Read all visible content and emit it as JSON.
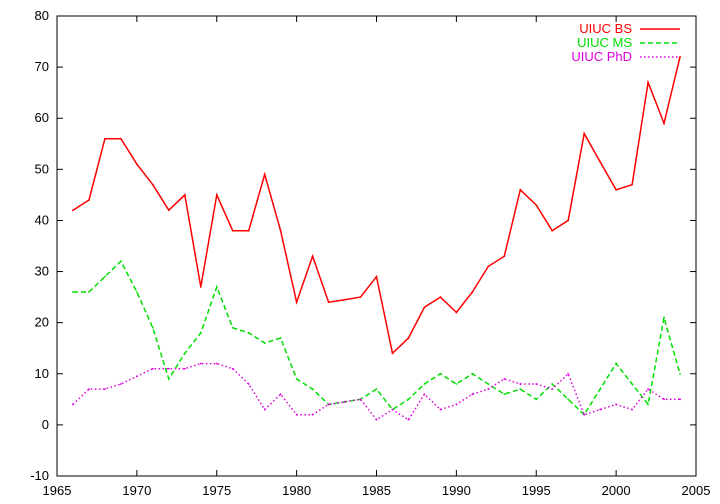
{
  "chart_data": {
    "type": "line",
    "title": "",
    "xlabel": "",
    "ylabel": "",
    "xlim": [
      1965,
      2005
    ],
    "ylim": [
      -10,
      80
    ],
    "xticks": [
      1965,
      1970,
      1975,
      1980,
      1985,
      1990,
      1995,
      2000,
      2005
    ],
    "yticks": [
      -10,
      0,
      10,
      20,
      30,
      40,
      50,
      60,
      70,
      80
    ],
    "grid": false,
    "legend_position": "top-right",
    "series": [
      {
        "name": "UIUC BS",
        "color": "#ff0000",
        "dash": "solid",
        "x": [
          1966,
          1967,
          1968,
          1969,
          1970,
          1971,
          1972,
          1973,
          1974,
          1975,
          1976,
          1977,
          1978,
          1979,
          1980,
          1981,
          1982,
          1983,
          1984,
          1985,
          1986,
          1987,
          1988,
          1989,
          1990,
          1991,
          1992,
          1993,
          1994,
          1995,
          1996,
          1997,
          1998,
          1999,
          2000,
          2001,
          2002,
          2003,
          2004
        ],
        "values": [
          42,
          44,
          56,
          56,
          51,
          47,
          42,
          45,
          27,
          45,
          38,
          38,
          49,
          38,
          24,
          33,
          24,
          24.5,
          25,
          29,
          14,
          17,
          23,
          25,
          22,
          26,
          31,
          33,
          46,
          43,
          38,
          40,
          57,
          51.5,
          46,
          47,
          67,
          59,
          72
        ]
      },
      {
        "name": "UIUC MS",
        "color": "#00dd00",
        "dash": "dashed",
        "x": [
          1966,
          1967,
          1968,
          1969,
          1970,
          1971,
          1972,
          1973,
          1974,
          1975,
          1976,
          1977,
          1978,
          1979,
          1980,
          1981,
          1982,
          1983,
          1984,
          1985,
          1986,
          1987,
          1988,
          1989,
          1990,
          1991,
          1992,
          1993,
          1994,
          1995,
          1996,
          1997,
          1998,
          1999,
          2000,
          2001,
          2002,
          2003,
          2004
        ],
        "values": [
          26,
          26,
          29,
          32,
          26,
          19,
          9,
          14,
          18,
          27,
          19,
          18,
          16,
          17,
          9,
          7,
          4,
          4.5,
          5,
          7,
          3,
          5,
          8,
          10,
          8,
          10,
          8,
          6,
          7,
          5,
          8,
          5,
          2,
          7,
          12,
          8,
          4,
          21,
          10
        ]
      },
      {
        "name": "UIUC PhD",
        "color": "#dd00dd",
        "dash": "dotted",
        "x": [
          1966,
          1967,
          1968,
          1969,
          1970,
          1971,
          1972,
          1973,
          1974,
          1975,
          1976,
          1977,
          1978,
          1979,
          1980,
          1981,
          1982,
          1983,
          1984,
          1985,
          1986,
          1987,
          1988,
          1989,
          1990,
          1991,
          1992,
          1993,
          1994,
          1995,
          1996,
          1997,
          1998,
          1999,
          2000,
          2001,
          2002,
          2003,
          2004
        ],
        "values": [
          4,
          7,
          7,
          8,
          9.5,
          11,
          11,
          11,
          12,
          12,
          11,
          8,
          3,
          6,
          2,
          2,
          4,
          4.5,
          5,
          1,
          3,
          1,
          6,
          3,
          4,
          6,
          7,
          9,
          8,
          8,
          7,
          10,
          2,
          3,
          4,
          3,
          7,
          5,
          5
        ]
      }
    ]
  }
}
